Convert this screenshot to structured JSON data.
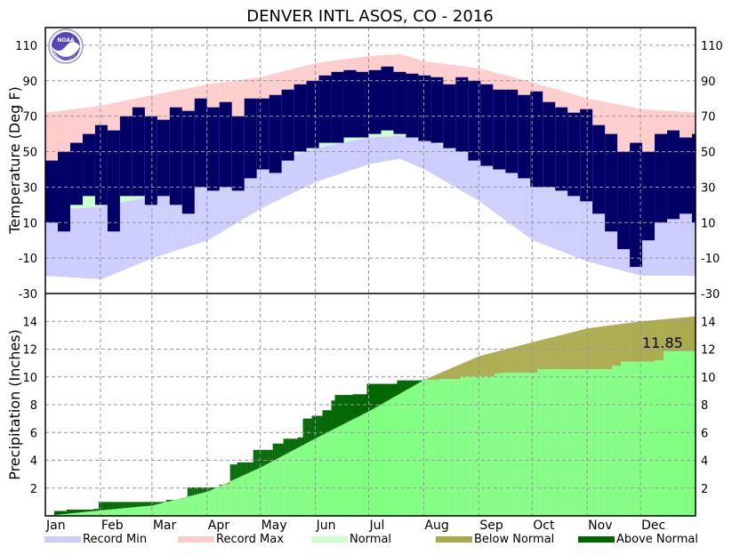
{
  "chart_data": {
    "title": "DENVER INTL  ASOS, CO - 2016",
    "type": "bar",
    "months": [
      "Jan",
      "Feb",
      "Mar",
      "Apr",
      "May",
      "Jun",
      "Jul",
      "Aug",
      "Sep",
      "Oct",
      "Nov",
      "Dec"
    ],
    "month_start_days": [
      1,
      32,
      61,
      92,
      122,
      153,
      183,
      214,
      245,
      275,
      306,
      336
    ],
    "days_in_year": 366,
    "temperature": {
      "ylabel": "Temperature (Deg F)",
      "ylim": [
        -30,
        120
      ],
      "ticks": [
        110,
        90,
        70,
        50,
        30,
        10,
        -10,
        -30
      ],
      "grid": true,
      "profile_days": [
        1,
        32,
        61,
        92,
        122,
        153,
        183,
        200,
        214,
        245,
        275,
        306,
        336,
        366
      ],
      "record_max": [
        72,
        76,
        82,
        88,
        92,
        100,
        104,
        105,
        101,
        97,
        89,
        80,
        74,
        72
      ],
      "normal_high": [
        44,
        46,
        52,
        60,
        68,
        80,
        88,
        90,
        88,
        80,
        66,
        52,
        44,
        44
      ],
      "normal_low": [
        17,
        19,
        25,
        33,
        42,
        52,
        58,
        59,
        57,
        47,
        35,
        24,
        17,
        17
      ],
      "record_min": [
        -20,
        -22,
        -10,
        0,
        18,
        33,
        43,
        46,
        40,
        22,
        0,
        -12,
        -20,
        -20
      ],
      "observed_weekly_high": [
        45,
        50,
        55,
        60,
        65,
        62,
        70,
        75,
        70,
        68,
        75,
        73,
        80,
        75,
        78,
        70,
        80,
        80,
        82,
        85,
        88,
        90,
        93,
        95,
        96,
        95,
        96,
        98,
        95,
        94,
        93,
        92,
        88,
        92,
        90,
        88,
        85,
        85,
        82,
        84,
        78,
        75,
        72,
        74,
        65,
        60,
        50,
        55,
        50,
        60,
        62,
        58,
        60
      ],
      "observed_weekly_low": [
        10,
        5,
        20,
        25,
        20,
        5,
        25,
        25,
        20,
        25,
        20,
        15,
        30,
        28,
        30,
        28,
        35,
        40,
        38,
        45,
        50,
        52,
        55,
        55,
        58,
        58,
        60,
        62,
        60,
        58,
        56,
        55,
        52,
        50,
        45,
        42,
        40,
        38,
        35,
        30,
        30,
        28,
        25,
        22,
        15,
        5,
        -5,
        -15,
        0,
        10,
        12,
        15,
        10
      ]
    },
    "precipitation": {
      "ylabel": "Precipitation (Inches)",
      "ylim": [
        0,
        16
      ],
      "ticks": [
        14,
        12,
        10,
        8,
        6,
        4,
        2
      ],
      "grid": true,
      "annotation": "11.85",
      "normal_cumulative_days": [
        1,
        32,
        61,
        92,
        122,
        153,
        183,
        214,
        245,
        275,
        306,
        336,
        366
      ],
      "normal_cumulative": [
        0.0,
        0.4,
        0.75,
        1.75,
        3.5,
        5.6,
        7.55,
        9.8,
        11.5,
        12.5,
        13.5,
        14.0,
        14.35
      ],
      "observed_cumulative_steps": [
        [
          1,
          0.0
        ],
        [
          6,
          0.35
        ],
        [
          13,
          0.45
        ],
        [
          28,
          0.5
        ],
        [
          31,
          1.0
        ],
        [
          69,
          1.15
        ],
        [
          75,
          1.2
        ],
        [
          79,
          1.3
        ],
        [
          81,
          2.05
        ],
        [
          99,
          2.25
        ],
        [
          105,
          3.7
        ],
        [
          109,
          3.85
        ],
        [
          118,
          4.75
        ],
        [
          129,
          5.2
        ],
        [
          135,
          5.55
        ],
        [
          143,
          5.65
        ],
        [
          146,
          7.0
        ],
        [
          151,
          7.2
        ],
        [
          157,
          7.6
        ],
        [
          162,
          8.3
        ],
        [
          164,
          8.7
        ],
        [
          174,
          8.75
        ],
        [
          182,
          9.5
        ],
        [
          199,
          9.75
        ],
        [
          215,
          9.8
        ],
        [
          223,
          9.85
        ],
        [
          235,
          10.05
        ],
        [
          254,
          10.25
        ],
        [
          258,
          10.3
        ],
        [
          278,
          10.55
        ],
        [
          320,
          10.8
        ],
        [
          325,
          11.1
        ],
        [
          344,
          11.2
        ],
        [
          349,
          11.85
        ]
      ]
    },
    "legend": [
      {
        "label": "Record Min",
        "color": "#ccccff"
      },
      {
        "label": "Record Max",
        "color": "#ffcccc"
      },
      {
        "label": "Normal",
        "color": "#ccffcc"
      },
      {
        "label": "Below Normal",
        "color": "#aaaa4c"
      },
      {
        "label": "Above Normal",
        "color": "#006600"
      }
    ],
    "colors": {
      "observed": "#000066",
      "precip_normal": "#80ff80",
      "grid": "#999999"
    },
    "logo": "NOAA"
  }
}
